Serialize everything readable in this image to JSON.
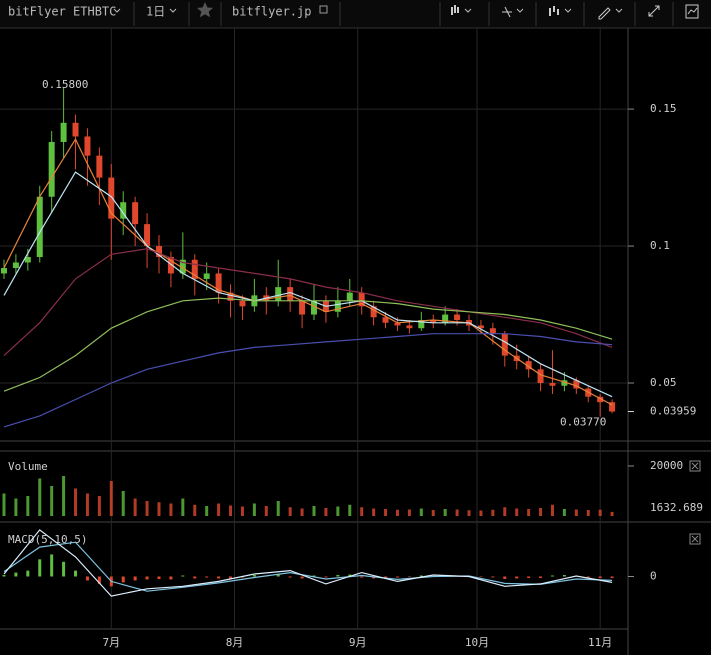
{
  "chart_data": {
    "type": "candlestick",
    "title": "bitFlyer ETHBTC",
    "interval": "1日",
    "source": "bitflyer.jp",
    "grid": true,
    "up_color": "#5fbf3f",
    "down_color": "#e0482e",
    "x": [
      1,
      4,
      7,
      10,
      13,
      16,
      19,
      22,
      25,
      28,
      31,
      34,
      37,
      40,
      43,
      46,
      49,
      52,
      55,
      58,
      61,
      64,
      67,
      70,
      73,
      76,
      79,
      82,
      85,
      88,
      91,
      94,
      97,
      100,
      103,
      106,
      109,
      112,
      115,
      118,
      121,
      124,
      127,
      130,
      133,
      136,
      139,
      142,
      145,
      148,
      151,
      154
    ],
    "candles": [
      [
        0.09,
        0.095,
        0.088,
        0.092
      ],
      [
        0.092,
        0.097,
        0.09,
        0.094
      ],
      [
        0.094,
        0.099,
        0.091,
        0.096
      ],
      [
        0.096,
        0.122,
        0.094,
        0.118
      ],
      [
        0.118,
        0.142,
        0.112,
        0.138
      ],
      [
        0.138,
        0.158,
        0.132,
        0.145
      ],
      [
        0.145,
        0.148,
        0.128,
        0.14
      ],
      [
        0.14,
        0.143,
        0.122,
        0.133
      ],
      [
        0.133,
        0.136,
        0.115,
        0.125
      ],
      [
        0.125,
        0.13,
        0.095,
        0.11
      ],
      [
        0.11,
        0.12,
        0.104,
        0.116
      ],
      [
        0.116,
        0.118,
        0.1,
        0.108
      ],
      [
        0.108,
        0.112,
        0.092,
        0.1
      ],
      [
        0.1,
        0.104,
        0.09,
        0.096
      ],
      [
        0.096,
        0.098,
        0.085,
        0.09
      ],
      [
        0.09,
        0.105,
        0.088,
        0.095
      ],
      [
        0.095,
        0.097,
        0.082,
        0.088
      ],
      [
        0.088,
        0.094,
        0.084,
        0.09
      ],
      [
        0.09,
        0.092,
        0.079,
        0.083
      ],
      [
        0.083,
        0.086,
        0.074,
        0.08
      ],
      [
        0.08,
        0.082,
        0.073,
        0.078
      ],
      [
        0.078,
        0.088,
        0.076,
        0.082
      ],
      [
        0.082,
        0.085,
        0.075,
        0.08
      ],
      [
        0.08,
        0.095,
        0.078,
        0.085
      ],
      [
        0.085,
        0.088,
        0.076,
        0.08
      ],
      [
        0.08,
        0.082,
        0.07,
        0.075
      ],
      [
        0.075,
        0.086,
        0.073,
        0.08
      ],
      [
        0.08,
        0.082,
        0.072,
        0.076
      ],
      [
        0.076,
        0.085,
        0.074,
        0.08
      ],
      [
        0.08,
        0.088,
        0.078,
        0.083
      ],
      [
        0.083,
        0.085,
        0.075,
        0.078
      ],
      [
        0.078,
        0.08,
        0.071,
        0.074
      ],
      [
        0.074,
        0.076,
        0.07,
        0.072
      ],
      [
        0.072,
        0.074,
        0.069,
        0.071
      ],
      [
        0.071,
        0.073,
        0.068,
        0.07
      ],
      [
        0.07,
        0.076,
        0.069,
        0.073
      ],
      [
        0.073,
        0.075,
        0.07,
        0.072
      ],
      [
        0.072,
        0.078,
        0.071,
        0.075
      ],
      [
        0.075,
        0.077,
        0.071,
        0.073
      ],
      [
        0.073,
        0.075,
        0.069,
        0.071
      ],
      [
        0.071,
        0.073,
        0.068,
        0.07
      ],
      [
        0.07,
        0.072,
        0.064,
        0.068
      ],
      [
        0.068,
        0.069,
        0.056,
        0.06
      ],
      [
        0.06,
        0.064,
        0.055,
        0.058
      ],
      [
        0.058,
        0.06,
        0.052,
        0.055
      ],
      [
        0.055,
        0.057,
        0.047,
        0.05
      ],
      [
        0.05,
        0.062,
        0.046,
        0.049
      ],
      [
        0.049,
        0.054,
        0.047,
        0.051
      ],
      [
        0.051,
        0.052,
        0.046,
        0.048
      ],
      [
        0.048,
        0.049,
        0.043,
        0.045
      ],
      [
        0.045,
        0.046,
        0.0377,
        0.043
      ],
      [
        0.043,
        0.044,
        0.039,
        0.03959
      ]
    ],
    "xlim": [
      0,
      158
    ],
    "xticks": [
      {
        "value": 28,
        "label": "7月"
      },
      {
        "value": 59,
        "label": "8月"
      },
      {
        "value": 90,
        "label": "9月"
      },
      {
        "value": 120,
        "label": "10月"
      },
      {
        "value": 151,
        "label": "11月"
      }
    ],
    "ylim": [
      0.0292,
      0.1796
    ],
    "yticks": [
      0.05,
      0.1,
      0.15
    ],
    "annotations": [
      {
        "value": 0.158,
        "label": "0.15800"
      },
      {
        "value": 0.0377,
        "label": "0.03770"
      }
    ],
    "ma_x": [
      1,
      10,
      19,
      28,
      37,
      46,
      55,
      64,
      73,
      82,
      91,
      100,
      109,
      118,
      127,
      136,
      145,
      154
    ],
    "ma_series": [
      {
        "color": "#e8833a",
        "values": [
          0.092,
          0.118,
          0.139,
          0.112,
          0.1,
          0.092,
          0.084,
          0.08,
          0.082,
          0.076,
          0.079,
          0.072,
          0.073,
          0.072,
          0.062,
          0.053,
          0.049,
          0.042
        ]
      },
      {
        "color": "#bfe6f5",
        "values": [
          0.082,
          0.105,
          0.127,
          0.118,
          0.1,
          0.09,
          0.083,
          0.08,
          0.083,
          0.078,
          0.08,
          0.073,
          0.072,
          0.072,
          0.065,
          0.057,
          0.051,
          0.045
        ]
      },
      {
        "color": "#8a2e4a",
        "values": [
          0.06,
          0.072,
          0.088,
          0.097,
          0.099,
          0.094,
          0.092,
          0.09,
          0.088,
          0.085,
          0.083,
          0.08,
          0.078,
          0.076,
          0.074,
          0.072,
          0.068,
          0.063
        ]
      },
      {
        "color": "#8fbf5a",
        "values": [
          0.047,
          0.052,
          0.06,
          0.07,
          0.076,
          0.08,
          0.081,
          0.08,
          0.08,
          0.08,
          0.08,
          0.079,
          0.077,
          0.076,
          0.075,
          0.073,
          0.07,
          0.066
        ]
      },
      {
        "color": "#4a4fb0",
        "values": [
          0.034,
          0.038,
          0.044,
          0.05,
          0.055,
          0.058,
          0.061,
          0.063,
          0.064,
          0.065,
          0.066,
          0.067,
          0.068,
          0.068,
          0.068,
          0.067,
          0.065,
          0.064
        ]
      }
    ],
    "volume": {
      "label": "Volume",
      "ylim": [
        0,
        25200
      ],
      "yticks": [
        20000
      ],
      "values": [
        9000,
        7000,
        8000,
        15000,
        12000,
        16000,
        11000,
        9000,
        8000,
        14000,
        10000,
        7000,
        6000,
        5500,
        5000,
        7000,
        4500,
        4000,
        5000,
        4200,
        3800,
        5000,
        4000,
        6000,
        3500,
        3000,
        4000,
        3200,
        3800,
        4500,
        3500,
        3000,
        2800,
        2500,
        2600,
        3000,
        2400,
        2800,
        2600,
        2300,
        2200,
        2500,
        3500,
        3000,
        2800,
        3200,
        4500,
        2800,
        2600,
        2400,
        2500,
        1632.689
      ]
    },
    "macd": {
      "label": "MACD(5,10,5)",
      "ylim": [
        -0.0105,
        0.0105
      ],
      "yticks": [
        0
      ],
      "histogram": [
        0.0003,
        0.0008,
        0.0012,
        0.0035,
        0.0045,
        0.003,
        0.0012,
        -0.0008,
        -0.0015,
        -0.002,
        -0.0012,
        -0.0008,
        -0.0006,
        -0.0005,
        -0.0006,
        0.0002,
        -0.0004,
        -0.0002,
        -0.0004,
        -0.0004,
        -0.0002,
        0.0003,
        0.0002,
        0.0004,
        -0.0002,
        -0.0004,
        0.0002,
        -0.0002,
        0.0003,
        0.0004,
        -0.0002,
        -0.0004,
        -0.0003,
        -0.0002,
        -0.0001,
        0.0002,
        0.0001,
        0.0003,
        0.0001,
        -0.0001,
        -0.0001,
        -0.0002,
        -0.0005,
        -0.0004,
        -0.0003,
        -0.0003,
        0.0002,
        0.0003,
        0.0001,
        -0.0002,
        -0.0003,
        -0.0003
      ],
      "line": {
        "color": "#dcefff",
        "values": [
          0.0005,
          0.0095,
          0.004,
          -0.004,
          -0.0025,
          -0.002,
          -0.001,
          0.0005,
          0.0012,
          -0.0015,
          0.0008,
          -0.001,
          0.0003,
          0.0,
          -0.002,
          -0.0015,
          0.0001,
          -0.0012
        ]
      },
      "signal": {
        "color": "#7fc3e0",
        "values": [
          0.001,
          0.006,
          0.007,
          -0.001,
          -0.003,
          -0.0022,
          -0.0013,
          -0.0002,
          0.0008,
          -0.0005,
          0.0002,
          -0.0006,
          0.0,
          0.0001,
          -0.0014,
          -0.0016,
          -0.0005,
          -0.0008
        ]
      }
    }
  }
}
